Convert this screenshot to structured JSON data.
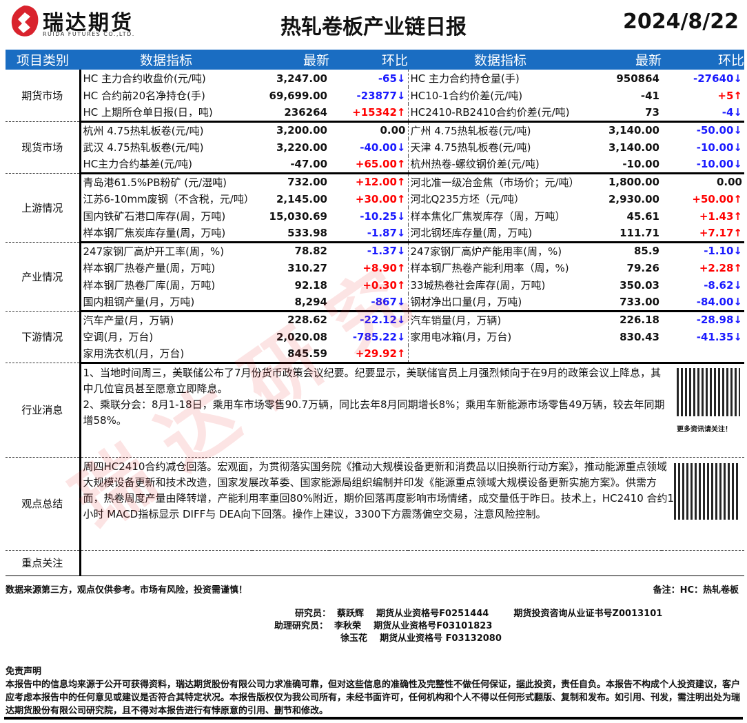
{
  "header": {
    "brand": "瑞达期货",
    "brand_en": "RUIDA FUTURES CO.,LTD.",
    "title": "热轧卷板产业链日报",
    "date": "2024/8/22"
  },
  "watermark": "瑞达研究",
  "columns": {
    "category": "项目类别",
    "indicator": "数据指标",
    "latest": "最新",
    "change": "环比"
  },
  "sections": [
    {
      "name": "期货市场",
      "rows": [
        [
          [
            "HC 主力合约收盘价(元/吨)",
            "3,247.00",
            "-65↓",
            "dn"
          ],
          [
            "HC 主力合约持仓量(手)",
            "950864",
            "-27640↓",
            "dn"
          ]
        ],
        [
          [
            "HC 合约前20名净持仓(手)",
            "69,699.00",
            "-23877↓",
            "dn"
          ],
          [
            "HC10-1合约价差(元/吨)",
            "-41",
            "+5↑",
            "up"
          ]
        ],
        [
          [
            "HC 上期所仓单日报(日，吨)",
            "236264",
            "+15342↑",
            "up"
          ],
          [
            "HC2410-RB2410合约价差(元/吨)",
            "73",
            "-4↓",
            "dn"
          ]
        ]
      ]
    },
    {
      "name": "现货市场",
      "rows": [
        [
          [
            "杭州 4.75热轧板卷(元/吨)",
            "3,200.00",
            "0.00",
            ""
          ],
          [
            "广州 4.75热轧板卷(元/吨)",
            "3,140.00",
            "-50.00↓",
            "dn"
          ]
        ],
        [
          [
            "武汉 4.75热轧板卷(元/吨)",
            "3,220.00",
            "-40.00↓",
            "dn"
          ],
          [
            "天津 4.75热轧板卷(元/吨)",
            "3,140.00",
            "-10.00↓",
            "dn"
          ]
        ],
        [
          [
            "HC主力合约基差(元/吨)",
            "-47.00",
            "+65.00↑",
            "up"
          ],
          [
            "杭州热卷-螺纹钢价差(元/吨)",
            "-10.00",
            "-10.00↓",
            "dn"
          ]
        ]
      ]
    },
    {
      "name": "上游情况",
      "rows": [
        [
          [
            "青岛港61.5%PB粉矿 (元/湿吨)",
            "732.00",
            "+12.00↑",
            "up"
          ],
          [
            "河北准一级冶金焦（市场价；元/吨）",
            "1,800.00",
            "0.00",
            ""
          ]
        ],
        [
          [
            "江苏6-10mm废钢（不含税，元/吨）",
            "2,145.00",
            "+30.00↑",
            "up"
          ],
          [
            "河北Q235方坯（元/吨）",
            "2,930.00",
            "+50.00↑",
            "up"
          ]
        ],
        [
          [
            "国内铁矿石港口库存(周，万吨)",
            "15,030.69",
            "-10.25↓",
            "dn"
          ],
          [
            "样本焦化厂焦炭库存（周，万吨）",
            "45.61",
            "+1.43↑",
            "up"
          ]
        ],
        [
          [
            "样本钢厂焦炭库存量(周，万吨)",
            "533.98",
            "-1.87↓",
            "dn"
          ],
          [
            "河北钢坯库存量(周，万吨)",
            "111.71",
            "+7.17↑",
            "up"
          ]
        ]
      ]
    },
    {
      "name": "产业情况",
      "rows": [
        [
          [
            "247家钢厂高炉开工率(周，%)",
            "78.82",
            "-1.37↓",
            "dn"
          ],
          [
            "247家钢厂高炉产能用率(周，%)",
            "85.9",
            "-1.10↓",
            "dn"
          ]
        ],
        [
          [
            "样本钢厂热卷产量(周，万吨)",
            "310.27",
            "+8.90↑",
            "up"
          ],
          [
            "样本钢厂热卷产能利用率（周，%)",
            "79.26",
            "+2.28↑",
            "up"
          ]
        ],
        [
          [
            "样本钢厂热卷厂库(周，万吨)",
            "92.18",
            "+0.30↑",
            "up"
          ],
          [
            "33城热卷社会库存(周，万吨)",
            "350.03",
            "-8.62↓",
            "dn"
          ]
        ],
        [
          [
            "国内粗钢产量(月，万吨)",
            "8,294",
            "-867↓",
            "dn"
          ],
          [
            "钢材净出口量(月，万吨)",
            "733.00",
            "-84.00↓",
            "dn"
          ]
        ]
      ]
    },
    {
      "name": "下游情况",
      "rows": [
        [
          [
            "汽车产量(月，万辆)",
            "228.62",
            "-22.12↓",
            "dn"
          ],
          [
            "汽车销量(月，万辆)",
            "226.18",
            "-28.98↓",
            "dn"
          ]
        ],
        [
          [
            "空调(月，万台)",
            "2,020.08",
            "-785.22↓",
            "dn"
          ],
          [
            "家用电冰箱(月，万台)",
            "830.43",
            "-41.35↓",
            "dn"
          ]
        ],
        [
          [
            "家用洗衣机(月，万台)",
            "845.59",
            "+29.92↑",
            "up"
          ],
          [
            "",
            "",
            "",
            ""
          ]
        ]
      ]
    }
  ],
  "news": {
    "label": "行业消息",
    "lines": [
      "1、当地时间周三，美联储公布了7月份货币政策会议纪要。纪要显示，美联储官员上月强烈倾向于在9月的政策会议上降息，其中几位官员甚至愿意立即降息。",
      "2、乘联分会：8月1-18日，乘用车市场零售90.7万辆，同比去年8月同期增长8%；乘用车新能源市场零售49万辆，较去年同期增58%。"
    ],
    "qr_caption": "更多资讯请关注！"
  },
  "view": {
    "label": "观点总结",
    "text": "周四HC2410合约减仓回落。宏观面，为贯彻落实国务院《推动大规模设备更新和消费品以旧换新行动方案》，推动能源重点领域大规模设备更新和技术改造，国家发展改革委、国家能源局组织编制并印发《能源重点领域大规模设备更新实施方案》。供需方面，热卷周度产量由降转增，产能利用率重回80%附近，期价回落再度影响市场情绪，成交量低于昨日。技术上，HC2410 合约1小时 MACD指标显示 DIFF与 DEA向下回落。操作上建议，3300下方震荡偏空交易，注意风险控制。"
  },
  "focus": {
    "label": "重点关注",
    "text": ""
  },
  "footer": {
    "source": "数据来源第三方，观点仅供参考。市场有风险，投资需谨慎！",
    "note": "备注：HC：热轧卷板",
    "analysts": [
      "研究员：  蔡跃辉    期货从业资格号F0251444        期货投资咨询从业证书号Z0013101",
      "助理研究员：  李秋荣    期货从业资格号F03101823",
      "徐玉花    期货从业资格号 F03132080"
    ],
    "disclaimer_title": "免责声明",
    "disclaimer": "本报告中的信息均来源于公开可获得资料，瑞达期货股份有限公司力求准确可靠，但对这些信息的准确性及完整性不做任何保证，据此投资，责任自负。本报告不构成个人投资建议，客户应考虑本报告中的任何意见或建议是否符合其特定状况。本报告版权仅为我公司所有，未经书面许可，任何机构和个人不得以任何形式翻版、复制和发布。如引用、刊发，需注明出处为瑞达期货股份有限公司研究院，且不得对本报告进行有悖原意的引用、删节和修改。"
  },
  "colors": {
    "header_blue": "#1a6dc2",
    "up": "#ff0000",
    "down": "#1a1aff",
    "logo_red": "#d9232d"
  }
}
